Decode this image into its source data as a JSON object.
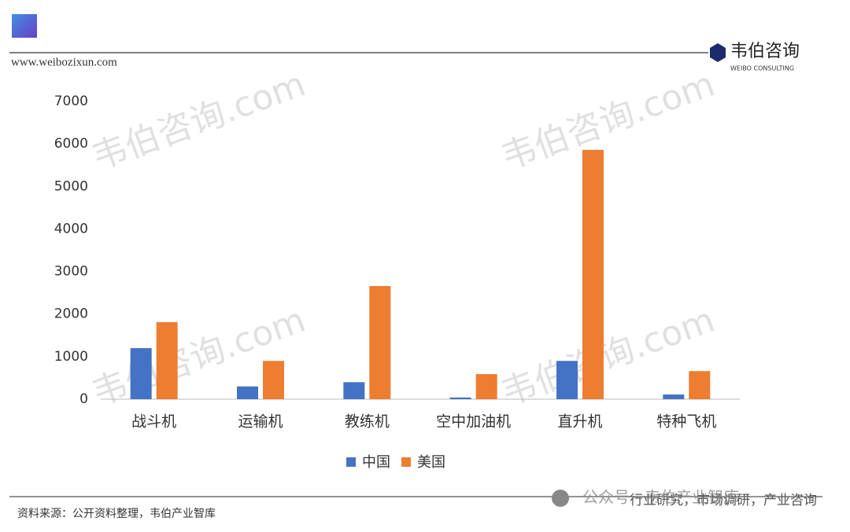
{
  "header": {
    "website": "www.weibozixun.com",
    "logo_cn": "韦伯咨询",
    "logo_en": "WEIBO CONSULTING"
  },
  "watermark": "韦伯咨询.com",
  "footer": {
    "source": "资料来源：公开资料整理，韦伯产业智库",
    "tagline": "行业研究，市场调研，产业咨询",
    "wechat": "公众号 · 韦伯产业智库"
  },
  "chart_data": {
    "type": "bar",
    "categories": [
      "战斗机",
      "运输机",
      "教练机",
      "空中加油机",
      "直升机",
      "特种飞机"
    ],
    "series": [
      {
        "name": "中国",
        "color": "#4472c4",
        "values": [
          1200,
          300,
          400,
          40,
          900,
          110
        ]
      },
      {
        "name": "美国",
        "color": "#ed7d31",
        "values": [
          1810,
          900,
          2660,
          590,
          5860,
          660
        ]
      }
    ],
    "ylim": [
      0,
      7000
    ],
    "yticks": [
      0,
      1000,
      2000,
      3000,
      4000,
      5000,
      6000,
      7000
    ],
    "grid": false,
    "legend": "bottom"
  }
}
